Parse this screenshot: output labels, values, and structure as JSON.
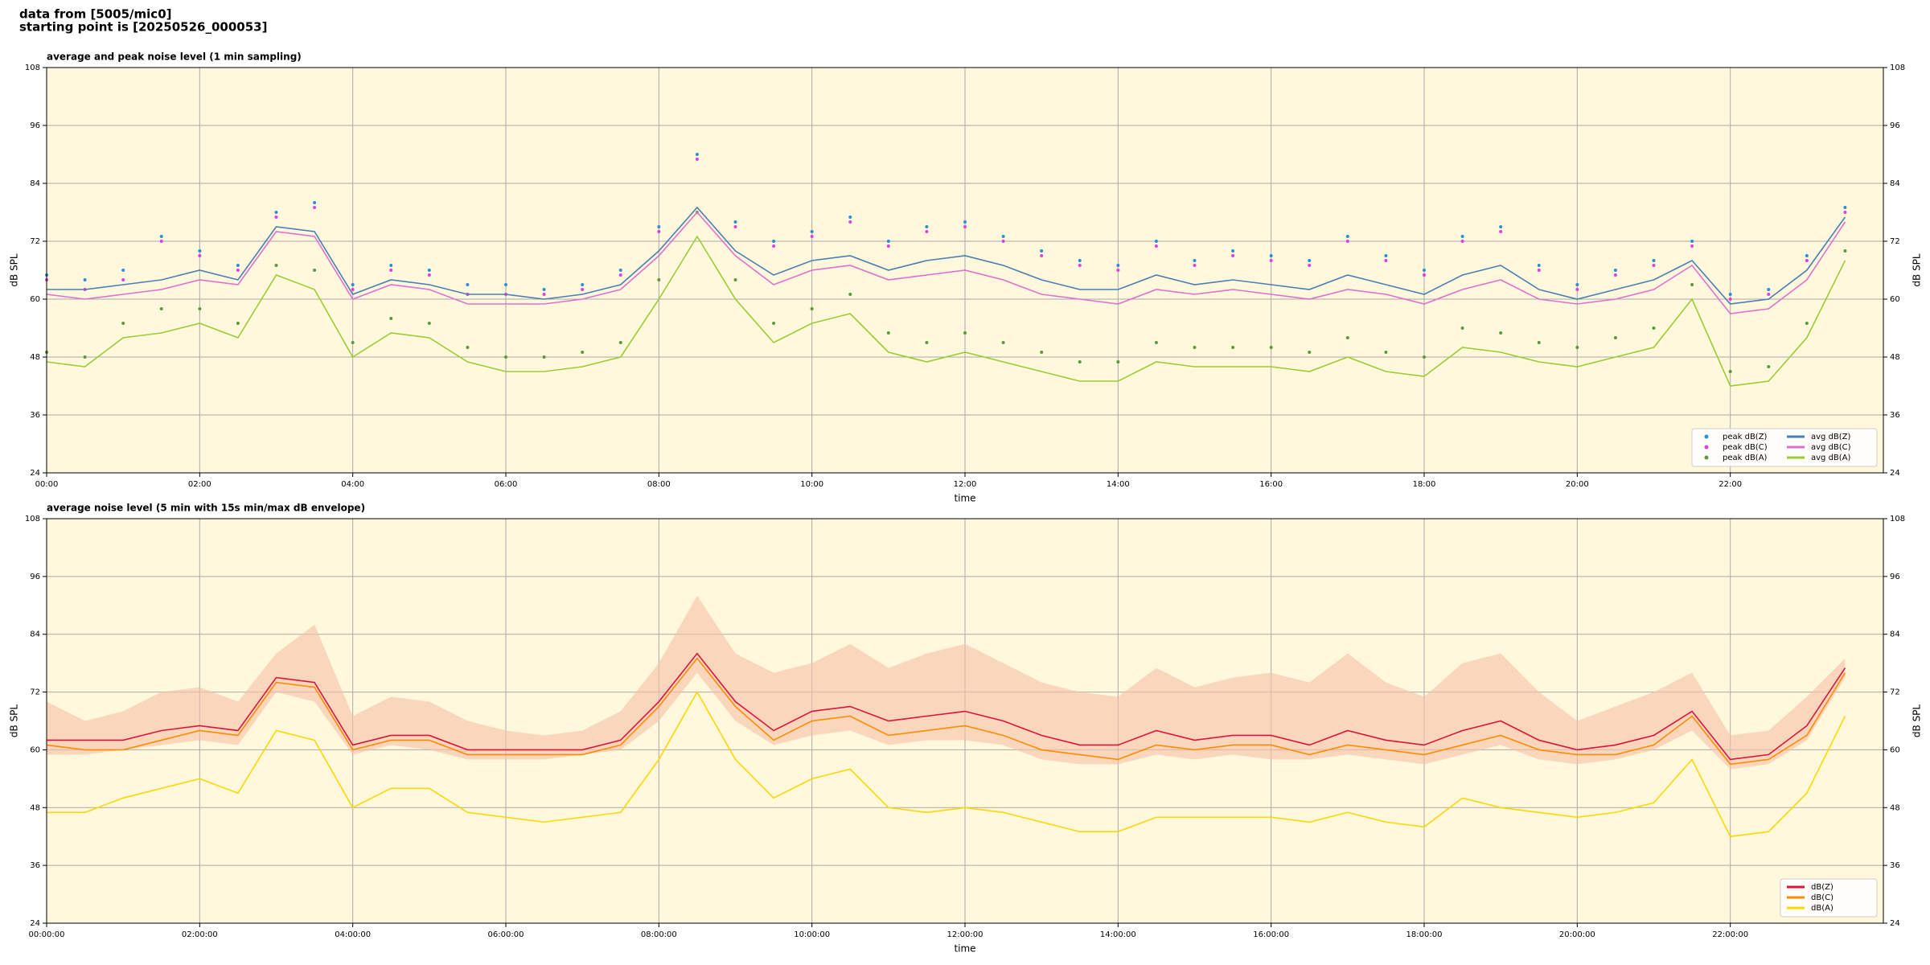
{
  "header": {
    "line1": "data from [5005/mic0]",
    "line2": "starting point is [20250526_000053]"
  },
  "chart_data": [
    {
      "type": "line",
      "title": "average and peak noise level (1 min sampling)",
      "x_label": "time",
      "y_label": "dB SPL",
      "xlim": [
        0,
        1440
      ],
      "ylim": [
        24,
        108
      ],
      "yticks": [
        24,
        36,
        48,
        60,
        72,
        84,
        96,
        108
      ],
      "xticks": [
        {
          "value": 0,
          "label": "00:00"
        },
        {
          "value": 120,
          "label": "02:00"
        },
        {
          "value": 240,
          "label": "04:00"
        },
        {
          "value": 360,
          "label": "06:00"
        },
        {
          "value": 480,
          "label": "08:00"
        },
        {
          "value": 600,
          "label": "10:00"
        },
        {
          "value": 720,
          "label": "12:00"
        },
        {
          "value": 840,
          "label": "14:00"
        },
        {
          "value": 960,
          "label": "16:00"
        },
        {
          "value": 1080,
          "label": "18:00"
        },
        {
          "value": 1200,
          "label": "20:00"
        },
        {
          "value": 1320,
          "label": "22:00"
        }
      ],
      "grid": true,
      "legend": "lower right",
      "legend_columns": 2,
      "background": "#fff8dc",
      "x": [
        0,
        30,
        60,
        90,
        120,
        150,
        180,
        210,
        240,
        270,
        300,
        330,
        360,
        390,
        420,
        450,
        480,
        510,
        540,
        570,
        600,
        630,
        660,
        690,
        720,
        750,
        780,
        810,
        840,
        870,
        900,
        930,
        960,
        990,
        1020,
        1050,
        1080,
        1110,
        1140,
        1170,
        1200,
        1230,
        1260,
        1290,
        1320,
        1350,
        1380,
        1410
      ],
      "series": [
        {
          "name": "peak dB(Z)",
          "kind": "scatter",
          "color": "#2a8fd6",
          "values": [
            65,
            64,
            66,
            73,
            70,
            67,
            78,
            80,
            63,
            67,
            66,
            63,
            63,
            62,
            63,
            66,
            75,
            90,
            76,
            72,
            74,
            77,
            72,
            75,
            76,
            73,
            70,
            68,
            67,
            72,
            68,
            70,
            69,
            68,
            73,
            69,
            66,
            73,
            75,
            67,
            63,
            66,
            68,
            72,
            61,
            62,
            69,
            79
          ]
        },
        {
          "name": "peak dB(C)",
          "kind": "scatter",
          "color": "#e040e0",
          "values": [
            64,
            62,
            64,
            72,
            69,
            66,
            77,
            79,
            62,
            66,
            65,
            61,
            61,
            61,
            62,
            65,
            74,
            89,
            75,
            71,
            73,
            76,
            71,
            74,
            75,
            72,
            69,
            67,
            66,
            71,
            67,
            69,
            68,
            67,
            72,
            68,
            65,
            72,
            74,
            66,
            62,
            65,
            67,
            71,
            60,
            61,
            68,
            78
          ]
        },
        {
          "name": "peak dB(A)",
          "kind": "scatter",
          "color": "#5a9a3a",
          "values": [
            49,
            48,
            55,
            58,
            58,
            55,
            67,
            66,
            51,
            56,
            55,
            50,
            48,
            48,
            49,
            51,
            64,
            78,
            64,
            55,
            58,
            61,
            53,
            51,
            53,
            51,
            49,
            47,
            47,
            51,
            50,
            50,
            50,
            49,
            52,
            49,
            48,
            54,
            53,
            51,
            50,
            52,
            54,
            63,
            45,
            46,
            55,
            70
          ]
        },
        {
          "name": "avg dB(Z)",
          "kind": "line",
          "color": "#4a7fb5",
          "values": [
            62,
            62,
            63,
            64,
            66,
            64,
            75,
            74,
            61,
            64,
            63,
            61,
            61,
            60,
            61,
            63,
            70,
            79,
            70,
            65,
            68,
            69,
            66,
            68,
            69,
            67,
            64,
            62,
            62,
            65,
            63,
            64,
            63,
            62,
            65,
            63,
            61,
            65,
            67,
            62,
            60,
            62,
            64,
            68,
            59,
            60,
            66,
            77
          ]
        },
        {
          "name": "avg dB(C)",
          "kind": "line",
          "color": "#e070d0",
          "values": [
            61,
            60,
            61,
            62,
            64,
            63,
            74,
            73,
            60,
            63,
            62,
            59,
            59,
            59,
            60,
            62,
            69,
            78,
            69,
            63,
            66,
            67,
            64,
            65,
            66,
            64,
            61,
            60,
            59,
            62,
            61,
            62,
            61,
            60,
            62,
            61,
            59,
            62,
            64,
            60,
            59,
            60,
            62,
            67,
            57,
            58,
            64,
            76
          ]
        },
        {
          "name": "avg dB(A)",
          "kind": "line",
          "color": "#9acd32",
          "values": [
            47,
            46,
            52,
            53,
            55,
            52,
            65,
            62,
            48,
            53,
            52,
            47,
            45,
            45,
            46,
            48,
            60,
            73,
            60,
            51,
            55,
            57,
            49,
            47,
            49,
            47,
            45,
            43,
            43,
            47,
            46,
            46,
            46,
            45,
            48,
            45,
            44,
            50,
            49,
            47,
            46,
            48,
            50,
            60,
            42,
            43,
            52,
            68
          ]
        }
      ]
    },
    {
      "type": "line",
      "title": "average noise level (5 min with 15s min/max dB envelope)",
      "x_label": "time",
      "y_label": "dB SPL",
      "xlim": [
        0,
        1440
      ],
      "ylim": [
        24,
        108
      ],
      "yticks": [
        24,
        36,
        48,
        60,
        72,
        84,
        96,
        108
      ],
      "xticks": [
        {
          "value": 0,
          "label": "00:00:00"
        },
        {
          "value": 120,
          "label": "02:00:00"
        },
        {
          "value": 240,
          "label": "04:00:00"
        },
        {
          "value": 360,
          "label": "06:00:00"
        },
        {
          "value": 480,
          "label": "08:00:00"
        },
        {
          "value": 600,
          "label": "10:00:00"
        },
        {
          "value": 720,
          "label": "12:00:00"
        },
        {
          "value": 840,
          "label": "14:00:00"
        },
        {
          "value": 960,
          "label": "16:00:00"
        },
        {
          "value": 1080,
          "label": "18:00:00"
        },
        {
          "value": 1200,
          "label": "20:00:00"
        },
        {
          "value": 1320,
          "label": "22:00:00"
        }
      ],
      "grid": true,
      "legend": "lower right",
      "legend_columns": 1,
      "background": "#fff8dc",
      "x": [
        0,
        30,
        60,
        90,
        120,
        150,
        180,
        210,
        240,
        270,
        300,
        330,
        360,
        390,
        420,
        450,
        480,
        510,
        540,
        570,
        600,
        630,
        660,
        690,
        720,
        750,
        780,
        810,
        840,
        870,
        900,
        930,
        960,
        990,
        1020,
        1050,
        1080,
        1110,
        1140,
        1170,
        1200,
        1230,
        1260,
        1290,
        1320,
        1350,
        1380,
        1410
      ],
      "envelope": {
        "color": "#f6c0a8",
        "lower": [
          59,
          59,
          60,
          61,
          62,
          61,
          72,
          70,
          59,
          61,
          60,
          58,
          58,
          58,
          59,
          60,
          66,
          76,
          66,
          61,
          63,
          64,
          61,
          62,
          62,
          61,
          58,
          57,
          57,
          59,
          58,
          59,
          58,
          58,
          59,
          58,
          57,
          59,
          61,
          58,
          57,
          58,
          60,
          64,
          56,
          57,
          62,
          75
        ],
        "upper": [
          70,
          66,
          68,
          72,
          73,
          70,
          80,
          86,
          67,
          71,
          70,
          66,
          64,
          63,
          64,
          68,
          78,
          92,
          80,
          76,
          78,
          82,
          77,
          80,
          82,
          78,
          74,
          72,
          71,
          77,
          73,
          75,
          76,
          74,
          80,
          74,
          71,
          78,
          80,
          72,
          66,
          69,
          72,
          76,
          63,
          64,
          71,
          79
        ]
      },
      "series": [
        {
          "name": "dB(Z)",
          "kind": "line",
          "color": "#dc143c",
          "values": [
            62,
            62,
            62,
            64,
            65,
            64,
            75,
            74,
            61,
            63,
            63,
            60,
            60,
            60,
            60,
            62,
            70,
            80,
            70,
            64,
            68,
            69,
            66,
            67,
            68,
            66,
            63,
            61,
            61,
            64,
            62,
            63,
            63,
            61,
            64,
            62,
            61,
            64,
            66,
            62,
            60,
            61,
            63,
            68,
            58,
            59,
            65,
            77
          ]
        },
        {
          "name": "dB(C)",
          "kind": "line",
          "color": "#ff8c00",
          "values": [
            61,
            60,
            60,
            62,
            64,
            63,
            74,
            73,
            60,
            62,
            62,
            59,
            59,
            59,
            59,
            61,
            69,
            79,
            69,
            62,
            66,
            67,
            63,
            64,
            65,
            63,
            60,
            59,
            58,
            61,
            60,
            61,
            61,
            59,
            61,
            60,
            59,
            61,
            63,
            60,
            59,
            59,
            61,
            67,
            57,
            58,
            63,
            76
          ]
        },
        {
          "name": "dB(A)",
          "kind": "line",
          "color": "#ffd700",
          "values": [
            47,
            47,
            50,
            52,
            54,
            51,
            64,
            62,
            48,
            52,
            52,
            47,
            46,
            45,
            46,
            47,
            58,
            72,
            58,
            50,
            54,
            56,
            48,
            47,
            48,
            47,
            45,
            43,
            43,
            46,
            46,
            46,
            46,
            45,
            47,
            45,
            44,
            50,
            48,
            47,
            46,
            47,
            49,
            58,
            42,
            43,
            51,
            67
          ]
        }
      ]
    }
  ]
}
